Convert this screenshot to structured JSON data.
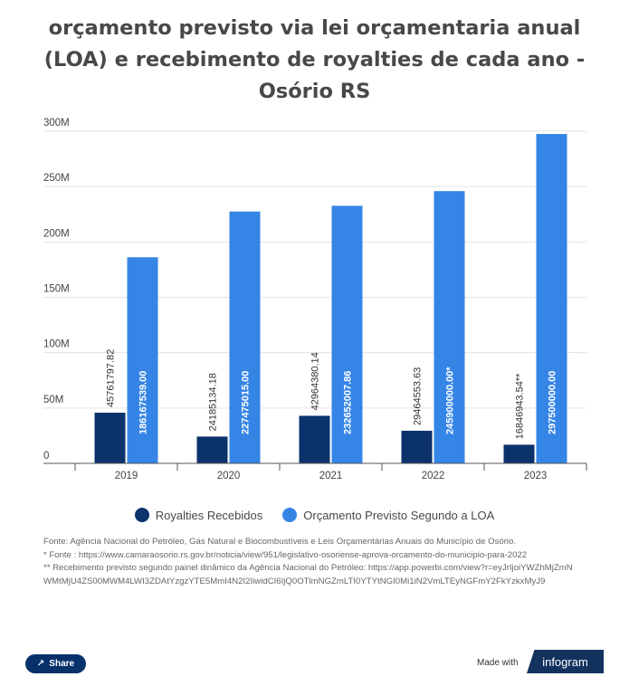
{
  "title_lines": [
    "orçamento previsto via lei orçamentaria anual",
    "(LOA) e recebimento de royalties de cada ano -",
    "Osório RS"
  ],
  "chart_data": {
    "type": "bar",
    "title": "orçamento previsto via lei orçamentaria anual (LOA) e recebimento de royalties de cada ano - Osório RS",
    "categories": [
      "2019",
      "2020",
      "2021",
      "2022",
      "2023"
    ],
    "series": [
      {
        "name": "Royalties Recebidos",
        "color": "#0b326b",
        "values": [
          45761797.82,
          24185134.18,
          42964380.14,
          29464553.63,
          16846943.54
        ],
        "labels": [
          "4576179 7.82",
          "24185134.18",
          "42964380.14",
          "29464553.63",
          "16846943.54**"
        ]
      },
      {
        "name": "Orçamento Previsto Segundo a LOA",
        "color": "#3585e6",
        "values": [
          186167539.0,
          227475015.0,
          232652007.86,
          245900000.0,
          297500000.0
        ],
        "labels": [
          "186167539.00",
          "227475015.00",
          "232652007.86",
          "245900000.00*",
          "297500000.00"
        ]
      }
    ],
    "yticks": [
      "0",
      "50M",
      "100M",
      "150M",
      "200M",
      "250M",
      "300M"
    ],
    "ylim": [
      0,
      300000000
    ],
    "grid": true,
    "legend": "bottom-center"
  },
  "notes": [
    "Fonte: Agência Nacional do Petróleo, Gás Natural e Biocombustíveis e Leis Orçamentárias Anuais do Município de Osório.",
    "* Fonte : https://www.camaraosorio.rs.gov.br/noticia/view/951/legislativo-osoriense-aprova-orcamento-do-municipio-para-2022",
    "** Recebimento previsto segundo painel dinâmico da Agência Nacional do Petróleo: https://app.powerbi.com/view?r=eyJrIjoiYWZhMjZmNWMtMjU4ZS00MWM4LWI3ZDAtYzgzYTE5MmI4N2I2IiwidCI6IjQ0OTlmNGZmLTI0YTYtNGI0Mi1iN2VmLTEyNGFmY2FkYzkxMyJ9"
  ],
  "footer": {
    "share_label": "Share",
    "made_with": "Made with",
    "brand": "infogram"
  }
}
